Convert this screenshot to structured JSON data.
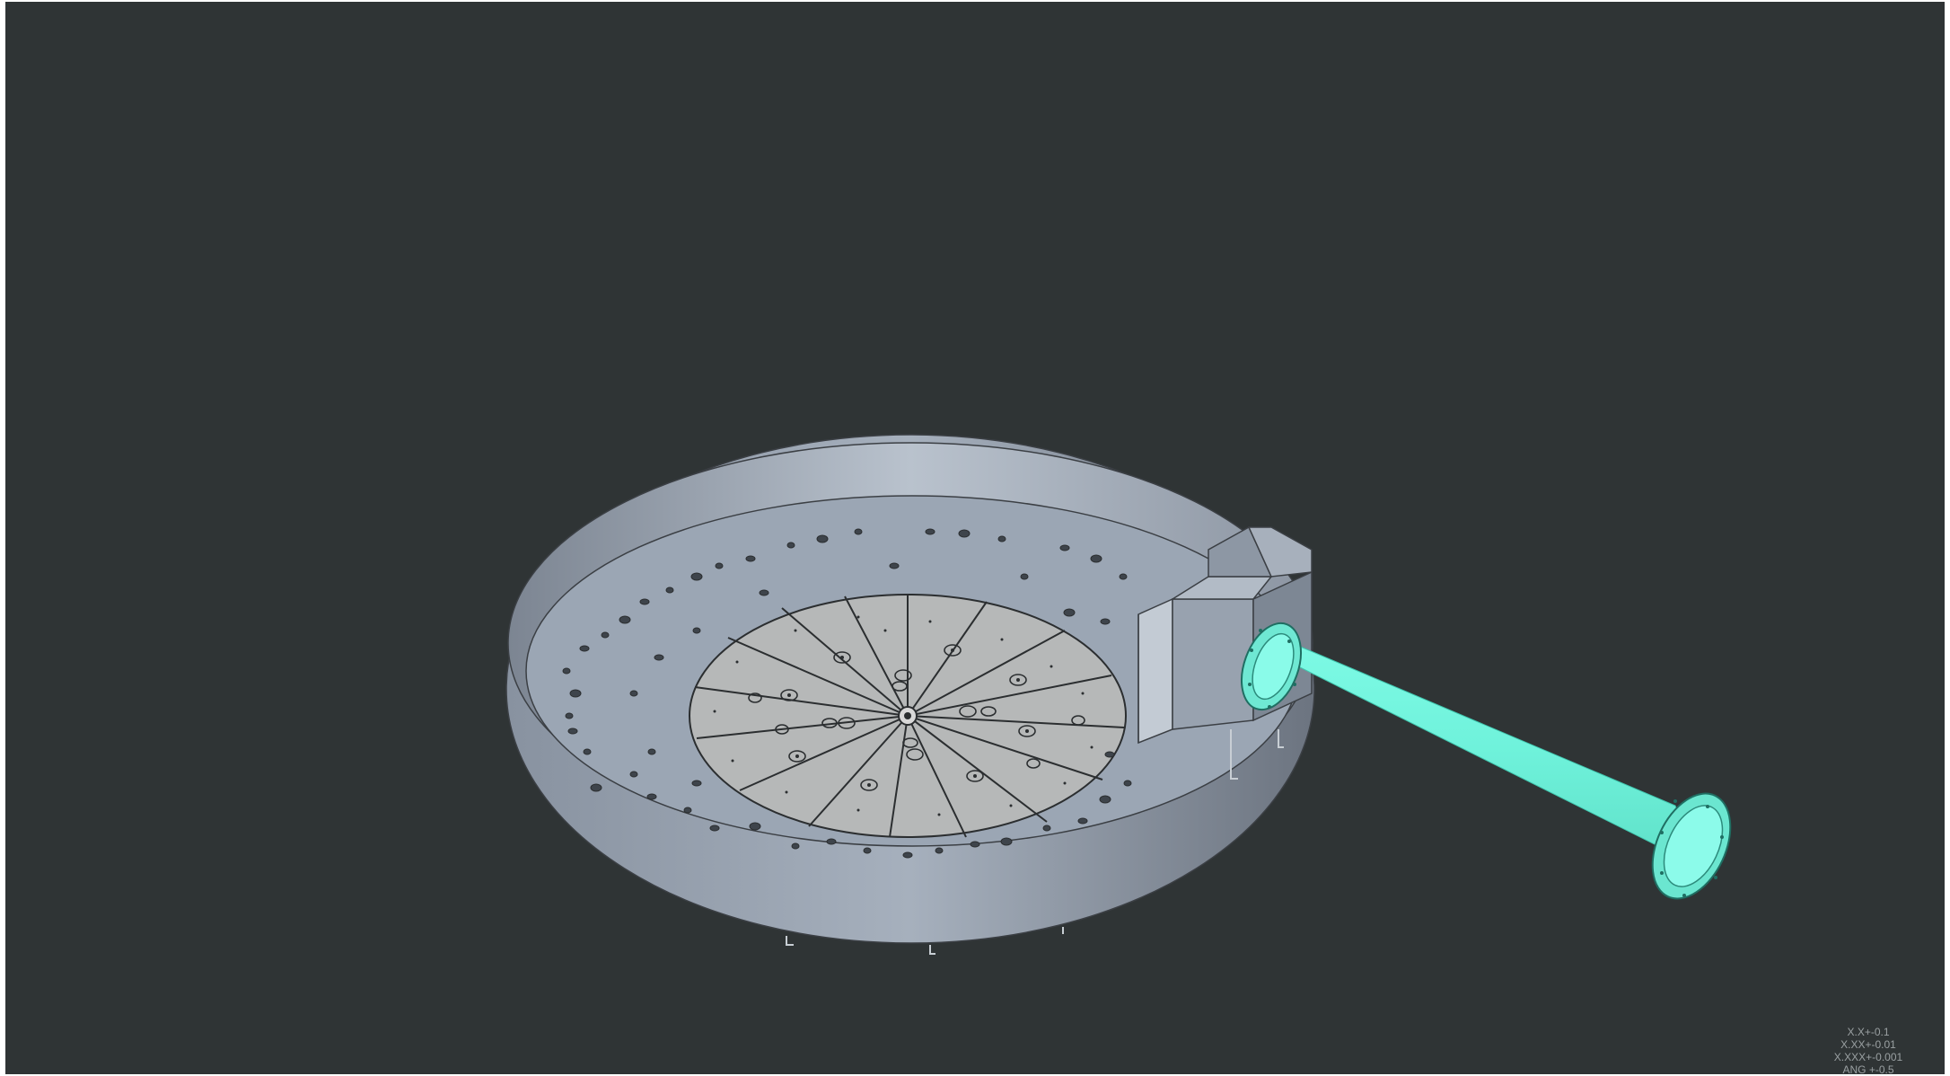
{
  "viewport": {
    "background": "#2f3435",
    "model": {
      "tank_color": "#8e99a8",
      "floor_color": "#9aa5b3",
      "center_plate_color": "#b4b6b6",
      "pipe_color": "#7efbe4",
      "edge_color": "#3b3f44"
    }
  },
  "tolerances": {
    "line1": "X.X+-0.1",
    "line2": "X.XX+-0.01",
    "line3": "X.XXX+-0.001",
    "line4": "ANG +-0.5"
  }
}
